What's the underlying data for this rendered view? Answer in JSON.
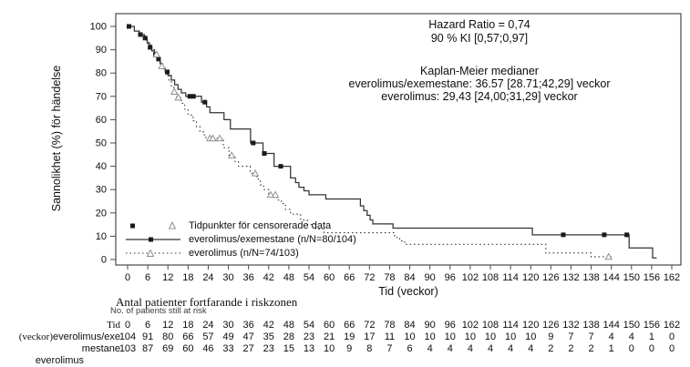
{
  "figure": {
    "y_axis_title": "Sannolikhet (%) för händelse",
    "x_axis_title": "Tid (veckor)",
    "annotations": {
      "hazard_ratio": "Hazard Ratio = 0,74",
      "confidence_interval": "90 % KI [0,57;0,97]",
      "km_header": "Kaplan-Meier medianer",
      "km_line1": "everolimus/exemestane: 36.57 [28.71;42,29] veckor",
      "km_line2": "everolimus: 29,43 [24,00;31,29] veckor"
    },
    "legend": {
      "censored_label": "Tidpunkter för censorerade data",
      "series1_label": "everolimus/exemestane (n/N=80/104)",
      "series2_label": "everolimus (n/N=74/103)"
    },
    "risk_table_titles": {
      "title_sv": "Antal patienter fortfarande i riskzonen",
      "title_en": "No. of patients still at risk",
      "label_line1_serif": "Tid",
      "label_line2_serif": "(veckor)",
      "label_line2_sans": "everolimus/exe",
      "label_line3_sans": "mestane",
      "label_line4_sans": "everolimus"
    },
    "colors": {
      "axis": "#4a4a4a",
      "curve": "#333333",
      "censor_square_fill": "#1a1a1a",
      "censor_triangle_stroke": "#8f8f8f",
      "text": "#0d0d0d"
    }
  },
  "chart_data": {
    "type": "line",
    "subtype": "kaplan-meier-step",
    "title": "",
    "xlabel": "Tid (veckor)",
    "ylabel": "Sannolikhet (%) för händelse",
    "xlim": [
      0,
      162
    ],
    "ylim": [
      0,
      100
    ],
    "x_ticks": [
      0,
      6,
      12,
      18,
      24,
      30,
      36,
      42,
      48,
      54,
      60,
      66,
      72,
      78,
      84,
      90,
      96,
      102,
      108,
      114,
      120,
      126,
      132,
      138,
      144,
      150,
      156,
      162
    ],
    "y_ticks": [
      0,
      10,
      20,
      30,
      40,
      50,
      60,
      70,
      80,
      90,
      100
    ],
    "grid": false,
    "legend_position": "inside-lower-left",
    "series": [
      {
        "name": "everolimus/exemestane (n/N=80/104)",
        "line_style": "solid",
        "censor_marker": "filled-square",
        "median_weeks": "36.57 [28.71;42,29]",
        "steps": [
          [
            0,
            100
          ],
          [
            2,
            98
          ],
          [
            3.5,
            96.5
          ],
          [
            5,
            95
          ],
          [
            5.8,
            93
          ],
          [
            6.5,
            91
          ],
          [
            7.2,
            89.5
          ],
          [
            8,
            88
          ],
          [
            9,
            86
          ],
          [
            9.7,
            84
          ],
          [
            10.4,
            82
          ],
          [
            11.2,
            80.5
          ],
          [
            12,
            79
          ],
          [
            13,
            77
          ],
          [
            14,
            75
          ],
          [
            15,
            73
          ],
          [
            16,
            71.5
          ],
          [
            17.3,
            70
          ],
          [
            22,
            67.5
          ],
          [
            23.5,
            65.5
          ],
          [
            24.5,
            63
          ],
          [
            28.7,
            60
          ],
          [
            30.6,
            56
          ],
          [
            36.6,
            50
          ],
          [
            40.3,
            45.5
          ],
          [
            43.6,
            40
          ],
          [
            48.5,
            35
          ],
          [
            50,
            33
          ],
          [
            51,
            31
          ],
          [
            52.5,
            29.5
          ],
          [
            54,
            27.8
          ],
          [
            59,
            26
          ],
          [
            69.3,
            23
          ],
          [
            70.3,
            21
          ],
          [
            71.3,
            19
          ],
          [
            72.2,
            17
          ],
          [
            73,
            15.3
          ],
          [
            79,
            13.5
          ],
          [
            120.5,
            10.6
          ],
          [
            149.3,
            5
          ],
          [
            156.3,
            0.7
          ]
        ],
        "end_t": 157.5,
        "censor_times": [
          0.4,
          3.8,
          5.2,
          6.7,
          8.3,
          9.2,
          11.8,
          18.5,
          19.6,
          23,
          37.4,
          40.7,
          45.6,
          129.7,
          141.9,
          148.6
        ]
      },
      {
        "name": "everolimus (n/N=74/103)",
        "line_style": "dotted",
        "censor_marker": "open-triangle",
        "median_weeks": "29,43 [24,00;31,29]",
        "steps": [
          [
            0,
            100
          ],
          [
            2,
            98
          ],
          [
            3.5,
            96.5
          ],
          [
            5,
            94
          ],
          [
            6,
            92
          ],
          [
            7,
            90
          ],
          [
            8,
            88
          ],
          [
            9,
            85.5
          ],
          [
            10,
            83
          ],
          [
            10.8,
            81
          ],
          [
            11.6,
            79
          ],
          [
            12.3,
            77
          ],
          [
            13,
            74.5
          ],
          [
            13.8,
            72
          ],
          [
            14.6,
            69.5
          ],
          [
            16,
            67
          ],
          [
            17,
            64.5
          ],
          [
            18,
            62
          ],
          [
            19.5,
            59.5
          ],
          [
            20.5,
            57
          ],
          [
            21.5,
            55
          ],
          [
            22.5,
            53.5
          ],
          [
            23.3,
            52
          ],
          [
            28.5,
            48
          ],
          [
            30.2,
            44.7
          ],
          [
            32,
            42
          ],
          [
            33,
            40
          ],
          [
            36.5,
            37
          ],
          [
            38.5,
            34.5
          ],
          [
            39.5,
            32
          ],
          [
            40.5,
            30
          ],
          [
            42,
            27.8
          ],
          [
            44.5,
            25.5
          ],
          [
            45.8,
            24
          ],
          [
            47,
            21.5
          ],
          [
            48.5,
            19.5
          ],
          [
            51.5,
            17
          ],
          [
            53.5,
            15
          ],
          [
            56,
            13
          ],
          [
            58.5,
            11.5
          ],
          [
            79.5,
            9.5
          ],
          [
            81,
            8
          ],
          [
            82.5,
            6.5
          ],
          [
            124.5,
            2.8
          ],
          [
            138,
            1.2
          ]
        ],
        "end_t": 144,
        "censor_times": [
          8.6,
          10.2,
          13.9,
          15.1,
          24.5,
          25.4,
          27.4,
          31,
          38,
          42.6,
          44,
          143.2
        ]
      }
    ],
    "risk_table": {
      "time": [
        0,
        6,
        12,
        18,
        24,
        30,
        36,
        42,
        48,
        54,
        60,
        66,
        72,
        78,
        84,
        90,
        96,
        102,
        108,
        114,
        120,
        126,
        132,
        138,
        144,
        150,
        156,
        162
      ],
      "everolimus_exemestane": [
        104,
        91,
        80,
        66,
        57,
        49,
        47,
        35,
        28,
        23,
        21,
        19,
        17,
        11,
        10,
        10,
        10,
        10,
        10,
        10,
        10,
        9,
        7,
        7,
        4,
        4,
        1,
        0
      ],
      "everolimus": [
        103,
        87,
        69,
        60,
        46,
        33,
        27,
        23,
        15,
        13,
        10,
        9,
        8,
        7,
        6,
        4,
        4,
        4,
        4,
        4,
        4,
        2,
        2,
        2,
        1,
        0,
        0,
        0
      ]
    }
  }
}
